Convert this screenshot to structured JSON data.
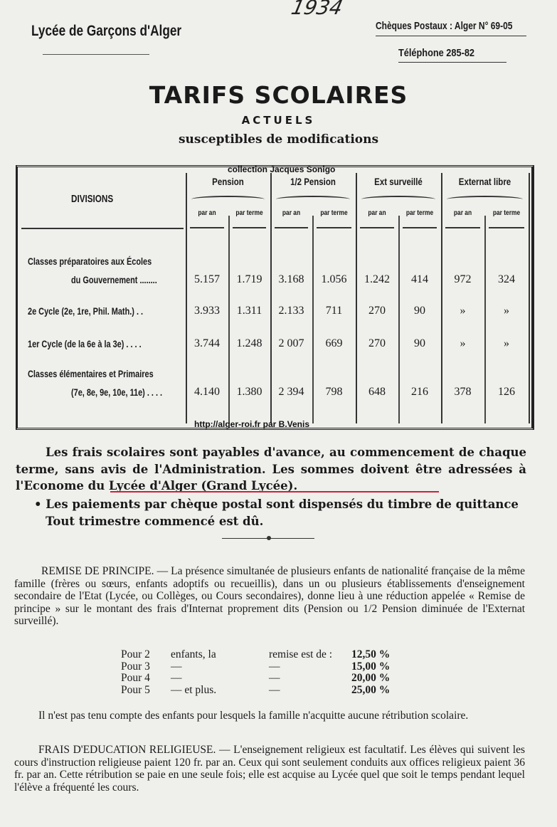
{
  "header": {
    "school": "Lycée de Garçons d'Alger",
    "cheques": "Chèques Postaux : Alger N° 69-05",
    "telephone": "Téléphone 285-82",
    "handwritten_year": "1934"
  },
  "title": {
    "main": "TARIFS SCOLAIRES",
    "sub1": "ACTUELS",
    "sub2": "susceptibles de modifications"
  },
  "watermarks": {
    "top": "collection Jacques Sonigo",
    "bottom": "http://alger-roi.fr   par B.Venis"
  },
  "table": {
    "divisions_header": "DIVISIONS",
    "groups": [
      "Pension",
      "1/2 Pension",
      "Ext surveillé",
      "Externat libre"
    ],
    "subheaders": [
      "par an",
      "par terme",
      "par an",
      "par terme",
      "par an",
      "par terme",
      "par an",
      "par terme"
    ],
    "rows": [
      {
        "label1": "Classes préparatoires aux Écoles",
        "label2": "du Gouvernement ........",
        "values": [
          "5.157",
          "1.719",
          "3.168",
          "1.056",
          "1.242",
          "414",
          "972",
          "324"
        ]
      },
      {
        "label1": "",
        "label2": "2e Cycle (2e, 1re, Phil. Math.) . .",
        "values": [
          "3.933",
          "1.311",
          "2.133",
          "711",
          "270",
          "90",
          "»",
          "»"
        ]
      },
      {
        "label1": "",
        "label2": "1er Cycle (de la 6e à la 3e) . . . .",
        "values": [
          "3.744",
          "1.248",
          "2 007",
          "669",
          "270",
          "90",
          "»",
          "»"
        ]
      },
      {
        "label1": "Classes élémentaires et Primaires",
        "label2": "(7e, 8e, 9e, 10e, 11e) . . . .",
        "values": [
          "4.140",
          "1.380",
          "2 394",
          "798",
          "648",
          "216",
          "378",
          "126"
        ]
      }
    ]
  },
  "payment": {
    "p1": "Les frais scolaires sont payables d'avance, au commencement de chaque terme, sans avis de l'Administration. Les sommes doivent être adressées à l'Econome du Lycée d'Alger (Grand Lycée).",
    "p2": "Les paiements par chèque postal sont dispensés du timbre de quittance",
    "p3": "Tout trimestre commencé est dû."
  },
  "remise": {
    "text": "REMISE DE PRINCIPE. — La présence simultanée de plusieurs enfants de nationalité française de la même famille (frères ou sœurs, enfants adoptifs ou recueillis), dans un ou plusieurs établissements d'enseignement secondaire de l'Etat (Lycée, ou Collèges, ou Cours secondaires), donne lieu à une réduction appelée « Remise de principe » sur le montant des frais d'Internat proprement dits (Pension ou 1/2 Pension diminuée de l'Externat surveillé).",
    "rates": [
      {
        "label": "Pour 2",
        "mid": "enfants, la",
        "mid2": "remise est de :",
        "value": "12,50 %"
      },
      {
        "label": "Pour 3",
        "mid": "—",
        "mid2": "—",
        "value": "15,00 %"
      },
      {
        "label": "Pour 4",
        "mid": "—",
        "mid2": "—",
        "value": "20,00 %"
      },
      {
        "label": "Pour 5",
        "mid": "—   et plus.",
        "mid2": "—",
        "value": "25,00 %"
      }
    ],
    "note": "Il n'est pas tenu compte des enfants pour lesquels la famille n'acquitte aucune rétribution scolaire."
  },
  "religion": {
    "text": "FRAIS D'EDUCATION RELIGIEUSE. — L'enseignement religieux est facultatif. Les élèves qui suivent les cours d'instruction religieuse paient 120 fr. par an. Ceux qui sont seulement conduits aux offices religieux paient 36 fr. par an. Cette rétribution se paie en une seule fois; elle est acquise au Lycée quel que soit le temps pendant lequel l'élève a fréquenté les cours."
  },
  "colors": {
    "paper": "#efefec",
    "ink": "#1a1a1a",
    "underline": "#d0203a"
  }
}
